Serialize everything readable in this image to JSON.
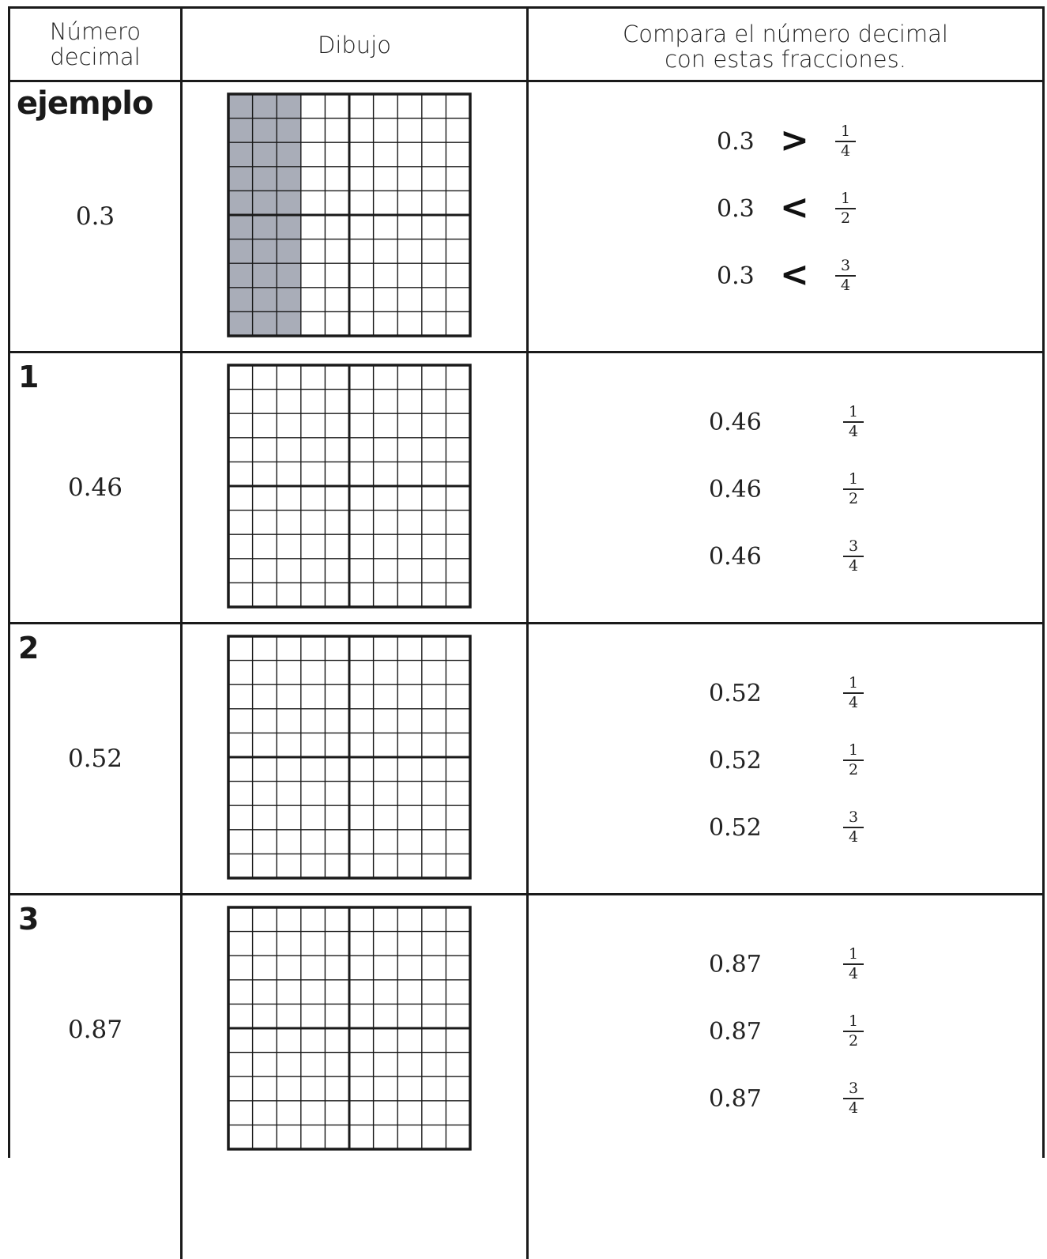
{
  "header": {
    "col1_line1": "Número",
    "col1_line2": "decimal",
    "col2": "Dibujo",
    "col3_line1": "Compara el número decimal",
    "col3_line2": "con estas fracciones."
  },
  "rows": [
    {
      "label": "ejemplo",
      "decimal": "0.3",
      "shaded_fraction": 0.3,
      "comparisons": [
        {
          "decimal": "0.3",
          "sign": ">",
          "num": "1",
          "den": "4"
        },
        {
          "decimal": "0.3",
          "sign": "<",
          "num": "1",
          "den": "2"
        },
        {
          "decimal": "0.3",
          "sign": "<",
          "num": "3",
          "den": "4"
        }
      ]
    },
    {
      "label": "1",
      "decimal": "0.46",
      "shaded_fraction": 0,
      "comparisons": [
        {
          "decimal": "0.46",
          "sign": "",
          "num": "1",
          "den": "4"
        },
        {
          "decimal": "0.46",
          "sign": "",
          "num": "1",
          "den": "2"
        },
        {
          "decimal": "0.46",
          "sign": "",
          "num": "3",
          "den": "4"
        }
      ]
    },
    {
      "label": "2",
      "decimal": "0.52",
      "shaded_fraction": 0,
      "comparisons": [
        {
          "decimal": "0.52",
          "sign": "",
          "num": "1",
          "den": "4"
        },
        {
          "decimal": "0.52",
          "sign": "",
          "num": "1",
          "den": "2"
        },
        {
          "decimal": "0.52",
          "sign": "",
          "num": "3",
          "den": "4"
        }
      ]
    },
    {
      "label": "3",
      "decimal": "0.87",
      "shaded_fraction": 0,
      "comparisons": [
        {
          "decimal": "0.87",
          "sign": "",
          "num": "1",
          "den": "4"
        },
        {
          "decimal": "0.87",
          "sign": "",
          "num": "1",
          "den": "2"
        },
        {
          "decimal": "0.87",
          "sign": "",
          "num": "3",
          "den": "4"
        }
      ]
    }
  ],
  "colors": {
    "shade": "#a9adb8",
    "ink": "#1a1a1a"
  }
}
